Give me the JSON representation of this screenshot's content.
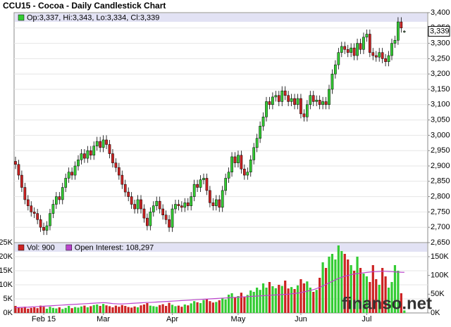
{
  "chart_data": [
    {
      "type": "candlestick",
      "title": "CCU15 - Cocoa - Daily Candlestick Chart",
      "legend": "Op:3,337, Hi:3,343, Lo:3,334, Cl:3,339",
      "last_price": {
        "value": 3339,
        "label": "3,339"
      },
      "up_color": "#33cc33",
      "down_color": "#cc2222",
      "grid": true,
      "ylim": [
        2650,
        3400
      ],
      "yticks": [
        {
          "value": 2650,
          "label": "2,650"
        },
        {
          "value": 2700,
          "label": "2,700"
        },
        {
          "value": 2750,
          "label": "2,750"
        },
        {
          "value": 2800,
          "label": "2,800"
        },
        {
          "value": 2850,
          "label": "2,850"
        },
        {
          "value": 2900,
          "label": "2,900"
        },
        {
          "value": 2950,
          "label": "2,950"
        },
        {
          "value": 3000,
          "label": "3,000"
        },
        {
          "value": 3050,
          "label": "3,050"
        },
        {
          "value": 3100,
          "label": "3,100"
        },
        {
          "value": 3150,
          "label": "3,150"
        },
        {
          "value": 3200,
          "label": "3,200"
        },
        {
          "value": 3250,
          "label": "3,250"
        },
        {
          "value": 3300,
          "label": "3,300"
        },
        {
          "value": 3350,
          "label": "3,350"
        },
        {
          "value": 3400,
          "label": "3,400"
        }
      ],
      "open": [
        2915,
        2905,
        2870,
        2830,
        2790,
        2770,
        2750,
        2745,
        2725,
        2700,
        2690,
        2705,
        2745,
        2775,
        2800,
        2790,
        2830,
        2860,
        2880,
        2870,
        2900,
        2920,
        2940,
        2925,
        2950,
        2935,
        2965,
        2980,
        2960,
        2985,
        2970,
        2940,
        2910,
        2895,
        2870,
        2840,
        2815,
        2800,
        2775,
        2760,
        2790,
        2760,
        2730,
        2705,
        2750,
        2770,
        2785,
        2760,
        2740,
        2725,
        2700,
        2760,
        2775,
        2770,
        2765,
        2780,
        2770,
        2800,
        2840,
        2830,
        2855,
        2860,
        2820,
        2780,
        2770,
        2790,
        2765,
        2820,
        2860,
        2880,
        2930,
        2910,
        2935,
        2890,
        2870,
        2880,
        2920,
        2960,
        2990,
        3030,
        3060,
        3110,
        3100,
        3125,
        3130,
        3110,
        3145,
        3130,
        3110,
        3120,
        3100,
        3120,
        3070,
        3060,
        3100,
        3130,
        3110,
        3115,
        3100,
        3110,
        3100,
        3150,
        3200,
        3230,
        3270,
        3290,
        3280,
        3270,
        3285,
        3260,
        3300,
        3280,
        3320,
        3330,
        3270,
        3260,
        3255,
        3270,
        3250,
        3240,
        3260,
        3300,
        3310,
        3370,
        3337
      ],
      "high": [
        2930,
        2920,
        2885,
        2845,
        2805,
        2785,
        2765,
        2760,
        2740,
        2715,
        2720,
        2760,
        2790,
        2815,
        2815,
        2845,
        2875,
        2895,
        2895,
        2915,
        2935,
        2955,
        2955,
        2965,
        2965,
        2980,
        2995,
        2995,
        3000,
        3000,
        2985,
        2955,
        2925,
        2910,
        2885,
        2855,
        2830,
        2815,
        2790,
        2805,
        2805,
        2775,
        2745,
        2765,
        2785,
        2800,
        2800,
        2775,
        2755,
        2740,
        2775,
        2790,
        2790,
        2785,
        2795,
        2795,
        2815,
        2855,
        2855,
        2870,
        2875,
        2875,
        2835,
        2795,
        2805,
        2805,
        2835,
        2875,
        2895,
        2945,
        2945,
        2950,
        2950,
        2905,
        2895,
        2935,
        2975,
        3005,
        3045,
        3075,
        3125,
        3125,
        3140,
        3145,
        3145,
        3160,
        3160,
        3145,
        3135,
        3135,
        3135,
        3135,
        3085,
        3115,
        3145,
        3145,
        3130,
        3130,
        3125,
        3125,
        3165,
        3215,
        3245,
        3285,
        3305,
        3305,
        3295,
        3300,
        3300,
        3315,
        3315,
        3335,
        3345,
        3345,
        3285,
        3275,
        3285,
        3285,
        3265,
        3275,
        3315,
        3325,
        3385,
        3385,
        3343
      ],
      "low": [
        2890,
        2855,
        2815,
        2775,
        2755,
        2735,
        2730,
        2710,
        2685,
        2675,
        2675,
        2690,
        2730,
        2760,
        2775,
        2775,
        2815,
        2845,
        2855,
        2855,
        2885,
        2905,
        2910,
        2910,
        2920,
        2920,
        2950,
        2945,
        2945,
        2955,
        2925,
        2895,
        2880,
        2855,
        2825,
        2800,
        2785,
        2760,
        2745,
        2745,
        2745,
        2715,
        2690,
        2690,
        2735,
        2755,
        2745,
        2725,
        2710,
        2685,
        2685,
        2745,
        2755,
        2750,
        2750,
        2755,
        2755,
        2785,
        2815,
        2815,
        2840,
        2805,
        2765,
        2755,
        2755,
        2750,
        2750,
        2805,
        2845,
        2865,
        2895,
        2895,
        2875,
        2855,
        2855,
        2865,
        2905,
        2945,
        2975,
        3015,
        3045,
        3085,
        3085,
        3110,
        3095,
        3095,
        3115,
        3095,
        3095,
        3085,
        3085,
        3055,
        3045,
        3045,
        3085,
        3095,
        3095,
        3085,
        3085,
        3085,
        3085,
        3135,
        3185,
        3215,
        3255,
        3265,
        3255,
        3255,
        3245,
        3245,
        3265,
        3265,
        3305,
        3255,
        3245,
        3240,
        3240,
        3235,
        3225,
        3225,
        3245,
        3285,
        3295,
        3335,
        3334
      ],
      "close": [
        2905,
        2870,
        2830,
        2790,
        2770,
        2750,
        2745,
        2725,
        2700,
        2690,
        2705,
        2745,
        2775,
        2800,
        2790,
        2830,
        2860,
        2880,
        2870,
        2900,
        2920,
        2940,
        2925,
        2950,
        2935,
        2965,
        2980,
        2960,
        2985,
        2970,
        2940,
        2910,
        2895,
        2870,
        2840,
        2815,
        2800,
        2775,
        2760,
        2790,
        2760,
        2730,
        2705,
        2750,
        2770,
        2785,
        2760,
        2740,
        2725,
        2700,
        2760,
        2775,
        2770,
        2765,
        2780,
        2770,
        2800,
        2840,
        2830,
        2855,
        2860,
        2820,
        2780,
        2770,
        2790,
        2765,
        2820,
        2860,
        2880,
        2930,
        2910,
        2935,
        2890,
        2870,
        2880,
        2920,
        2960,
        2990,
        3030,
        3060,
        3110,
        3100,
        3125,
        3130,
        3110,
        3145,
        3130,
        3110,
        3120,
        3100,
        3120,
        3070,
        3060,
        3100,
        3130,
        3110,
        3115,
        3100,
        3110,
        3100,
        3150,
        3200,
        3230,
        3270,
        3290,
        3280,
        3270,
        3285,
        3260,
        3300,
        3280,
        3320,
        3330,
        3270,
        3260,
        3255,
        3270,
        3250,
        3240,
        3260,
        3300,
        3310,
        3370,
        3350,
        3339
      ]
    },
    {
      "type": "bar",
      "watermark": "finanso.net",
      "categories": [
        null,
        null,
        null,
        null,
        null,
        null,
        null,
        null,
        null,
        "Feb 15",
        null,
        null,
        null,
        null,
        null,
        null,
        null,
        null,
        null,
        null,
        null,
        null,
        null,
        null,
        null,
        null,
        null,
        null,
        "Mar",
        null,
        null,
        null,
        null,
        null,
        null,
        null,
        null,
        null,
        null,
        null,
        null,
        null,
        null,
        null,
        null,
        null,
        null,
        null,
        null,
        null,
        "Apr",
        null,
        null,
        null,
        null,
        null,
        null,
        null,
        null,
        null,
        null,
        null,
        null,
        null,
        null,
        null,
        null,
        null,
        null,
        null,
        null,
        "May",
        null,
        null,
        null,
        null,
        null,
        null,
        null,
        null,
        null,
        null,
        null,
        null,
        null,
        null,
        null,
        null,
        null,
        null,
        null,
        "Jun",
        null,
        null,
        null,
        null,
        null,
        null,
        null,
        null,
        null,
        null,
        null,
        null,
        null,
        null,
        null,
        null,
        null,
        null,
        null,
        null,
        "Jul",
        null,
        null,
        null,
        null,
        null,
        null,
        null,
        null,
        null,
        null,
        null,
        null
      ],
      "ylim": [
        0,
        25000
      ],
      "yticks": [
        {
          "value": 0,
          "label": "0K"
        },
        {
          "value": 5000,
          "label": "5K"
        },
        {
          "value": 10000,
          "label": "10K"
        },
        {
          "value": 15000,
          "label": "15K"
        },
        {
          "value": 20000,
          "label": "20K"
        },
        {
          "value": 25000,
          "label": "25K"
        }
      ],
      "y2lim": [
        0,
        187500
      ],
      "y2ticks": [
        {
          "value": 0,
          "label": "0K"
        },
        {
          "value": 50000,
          "label": "50K"
        },
        {
          "value": 100000,
          "label": "100K"
        },
        {
          "value": 150000,
          "label": "150K"
        }
      ],
      "series": [
        {
          "name": "Vol: 900",
          "color": "#cc2222",
          "values": [
            2500,
            2000,
            1800,
            2200,
            1500,
            1800,
            2000,
            1700,
            2600,
            2200,
            1500,
            2200,
            1800,
            1600,
            2000,
            1400,
            1800,
            2500,
            1700,
            2100,
            1900,
            2300,
            2600,
            2000,
            2400,
            2800,
            3000,
            2500,
            3200,
            2700,
            2400,
            2000,
            2600,
            2200,
            2800,
            2500,
            2100,
            1900,
            2300,
            2000,
            2700,
            3000,
            3500,
            2600,
            2400,
            2200,
            2800,
            3100,
            2500,
            3600,
            2900,
            2400,
            2600,
            2200,
            3000,
            2700,
            3400,
            4200,
            3800,
            3500,
            4600,
            5000,
            4200,
            3700,
            3900,
            4500,
            5200,
            4800,
            6500,
            7000,
            5500,
            6000,
            7200,
            5800,
            6400,
            8000,
            7500,
            9000,
            8200,
            10500,
            9000,
            11000,
            9500,
            8800,
            10000,
            9600,
            11500,
            8700,
            9200,
            8500,
            9800,
            12000,
            10500,
            11200,
            9000,
            7500,
            8200,
            12500,
            18000,
            16000,
            20000,
            21000,
            19000,
            24000,
            22000,
            21000,
            19000,
            17000,
            15000,
            20000,
            16000,
            14000,
            13000,
            11000,
            17000,
            12000,
            10000,
            16000,
            13000,
            9000,
            11000,
            17000,
            15000,
            7000,
            900
          ]
        },
        {
          "name": "Open Interest: 108,297",
          "color": "#bb44cc",
          "type": "line",
          "axis": "y2",
          "values": [
            14000,
            14500,
            15000,
            15200,
            15500,
            16000,
            16500,
            17000,
            17500,
            18000,
            18500,
            19000,
            19500,
            20000,
            20500,
            21000,
            21500,
            22000,
            22500,
            23000,
            23500,
            24000,
            24500,
            25000,
            25500,
            26000,
            26500,
            27000,
            27500,
            27000,
            26000,
            25000,
            24500,
            24000,
            24000,
            24500,
            25000,
            25500,
            26000,
            26500,
            27000,
            27500,
            28000,
            28000,
            28500,
            29000,
            29500,
            30000,
            30500,
            31000,
            31500,
            32000,
            32500,
            33000,
            33500,
            34000,
            34500,
            35000,
            35500,
            36000,
            36500,
            37000,
            37500,
            38000,
            38500,
            39000,
            39500,
            40000,
            40500,
            41000,
            41500,
            42000,
            42500,
            43000,
            43500,
            44000,
            44500,
            45000,
            45500,
            46000,
            46500,
            47000,
            47500,
            48000,
            48500,
            49000,
            49500,
            50000,
            51000,
            52000,
            53000,
            54000,
            56000,
            58000,
            60000,
            62000,
            65000,
            68000,
            72000,
            76000,
            80000,
            84000,
            88000,
            92000,
            95000,
            98000,
            100000,
            102000,
            104000,
            105000,
            106000,
            107000,
            108000,
            109000,
            110000,
            110000,
            110500,
            111000,
            111000,
            110500,
            110000,
            109500,
            109000,
            108500,
            108297
          ]
        }
      ]
    }
  ]
}
